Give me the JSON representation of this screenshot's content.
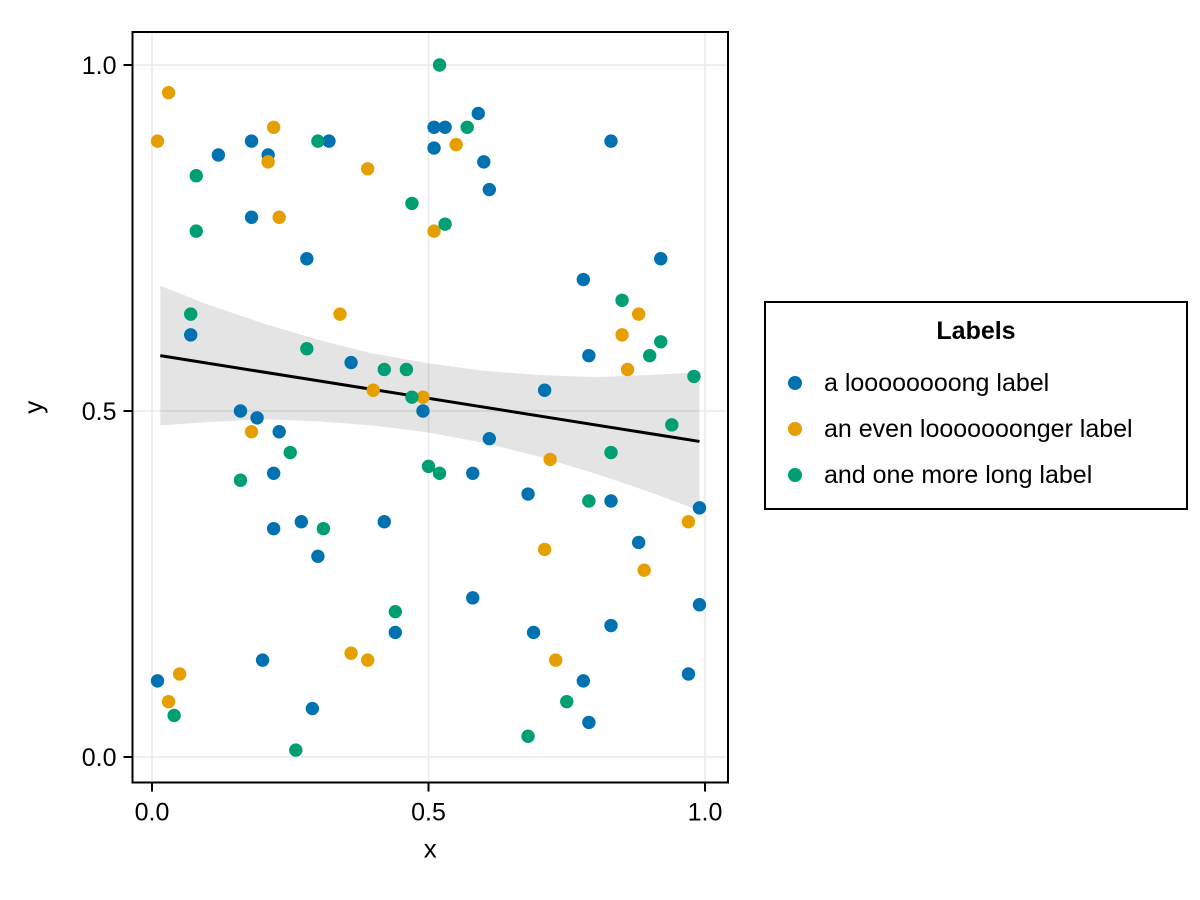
{
  "figure": {
    "background": "#ffffff"
  },
  "colors": {
    "grid": "#e9e9e9",
    "spine": "#000000",
    "tick": "#000000",
    "text": "#000000",
    "band_fill": "#000000",
    "band_opacity": 0.105,
    "fit_line": "#000000"
  },
  "legend": {
    "title": "Labels",
    "position": "right",
    "items": [
      {
        "label": "a loooooooong label",
        "color": "#0072B2"
      },
      {
        "label": "an even looooooonger label",
        "color": "#E69F00"
      },
      {
        "label": "and one more long label",
        "color": "#009E73"
      }
    ]
  },
  "chart_data": {
    "type": "scatter",
    "title": "",
    "xlabel": "x",
    "ylabel": "y",
    "xlim": [
      -0.036,
      1.042
    ],
    "ylim": [
      -0.036,
      1.048
    ],
    "grid": true,
    "legend_position": "right",
    "x_ticks": {
      "values": [
        0,
        0.5,
        1
      ],
      "labels": [
        "0.0",
        "0.5",
        "1.0"
      ]
    },
    "y_ticks": {
      "values": [
        0,
        0.5,
        1
      ],
      "labels": [
        "0.0",
        "0.5",
        "1.0"
      ]
    },
    "series": [
      {
        "name": "a loooooooong label",
        "color": "#0072B2",
        "points": [
          [
            0.18,
            0.89
          ],
          [
            0.12,
            0.87
          ],
          [
            0.21,
            0.87
          ],
          [
            0.32,
            0.89
          ],
          [
            0.18,
            0.78
          ],
          [
            0.28,
            0.72
          ],
          [
            0.51,
            0.91
          ],
          [
            0.53,
            0.91
          ],
          [
            0.51,
            0.88
          ],
          [
            0.59,
            0.93
          ],
          [
            0.6,
            0.86
          ],
          [
            0.61,
            0.82
          ],
          [
            0.83,
            0.89
          ],
          [
            0.92,
            0.72
          ],
          [
            0.78,
            0.69
          ],
          [
            0.79,
            0.58
          ],
          [
            0.07,
            0.61
          ],
          [
            0.36,
            0.57
          ],
          [
            0.49,
            0.5
          ],
          [
            0.16,
            0.5
          ],
          [
            0.19,
            0.49
          ],
          [
            0.23,
            0.47
          ],
          [
            0.22,
            0.41
          ],
          [
            0.27,
            0.34
          ],
          [
            0.22,
            0.33
          ],
          [
            0.42,
            0.34
          ],
          [
            0.3,
            0.29
          ],
          [
            0.71,
            0.53
          ],
          [
            0.61,
            0.46
          ],
          [
            0.58,
            0.41
          ],
          [
            0.68,
            0.38
          ],
          [
            0.83,
            0.37
          ],
          [
            0.99,
            0.36
          ],
          [
            0.88,
            0.31
          ],
          [
            0.44,
            0.18
          ],
          [
            0.2,
            0.14
          ],
          [
            0.01,
            0.11
          ],
          [
            0.29,
            0.07
          ],
          [
            0.58,
            0.23
          ],
          [
            0.99,
            0.22
          ],
          [
            0.69,
            0.18
          ],
          [
            0.83,
            0.19
          ],
          [
            0.78,
            0.11
          ],
          [
            0.97,
            0.12
          ],
          [
            0.79,
            0.05
          ]
        ]
      },
      {
        "name": "an even looooooonger label",
        "color": "#E69F00",
        "points": [
          [
            0.03,
            0.96
          ],
          [
            0.01,
            0.89
          ],
          [
            0.22,
            0.91
          ],
          [
            0.21,
            0.86
          ],
          [
            0.23,
            0.78
          ],
          [
            0.39,
            0.85
          ],
          [
            0.55,
            0.885
          ],
          [
            0.51,
            0.76
          ],
          [
            0.34,
            0.64
          ],
          [
            0.4,
            0.53
          ],
          [
            0.18,
            0.47
          ],
          [
            0.49,
            0.52
          ],
          [
            0.88,
            0.64
          ],
          [
            0.85,
            0.61
          ],
          [
            0.86,
            0.56
          ],
          [
            0.72,
            0.43
          ],
          [
            0.97,
            0.34
          ],
          [
            0.71,
            0.3
          ],
          [
            0.36,
            0.15
          ],
          [
            0.39,
            0.14
          ],
          [
            0.05,
            0.12
          ],
          [
            0.03,
            0.08
          ],
          [
            0.89,
            0.27
          ],
          [
            0.73,
            0.14
          ]
        ]
      },
      {
        "name": "and one more long label",
        "color": "#009E73",
        "points": [
          [
            0.08,
            0.84
          ],
          [
            0.08,
            0.76
          ],
          [
            0.3,
            0.89
          ],
          [
            0.47,
            0.8
          ],
          [
            0.52,
            1.0
          ],
          [
            0.57,
            0.91
          ],
          [
            0.53,
            0.77
          ],
          [
            0.07,
            0.64
          ],
          [
            0.28,
            0.59
          ],
          [
            0.42,
            0.56
          ],
          [
            0.46,
            0.56
          ],
          [
            0.47,
            0.52
          ],
          [
            0.25,
            0.44
          ],
          [
            0.16,
            0.4
          ],
          [
            0.5,
            0.42
          ],
          [
            0.52,
            0.41
          ],
          [
            0.31,
            0.33
          ],
          [
            0.85,
            0.66
          ],
          [
            0.92,
            0.6
          ],
          [
            0.9,
            0.58
          ],
          [
            0.98,
            0.55
          ],
          [
            0.94,
            0.48
          ],
          [
            0.83,
            0.44
          ],
          [
            0.79,
            0.37
          ],
          [
            0.44,
            0.21
          ],
          [
            0.04,
            0.06
          ],
          [
            0.26,
            0.01
          ],
          [
            0.75,
            0.08
          ],
          [
            0.68,
            0.03
          ]
        ]
      }
    ],
    "fit_line": {
      "x": [
        0.015,
        0.99
      ],
      "y": [
        0.58,
        0.456
      ]
    },
    "confidence_band": {
      "x": [
        0.015,
        0.1,
        0.2,
        0.3,
        0.4,
        0.5,
        0.6,
        0.7,
        0.8,
        0.9,
        0.99
      ],
      "upper": [
        0.681,
        0.654,
        0.627,
        0.603,
        0.583,
        0.569,
        0.558,
        0.552,
        0.549,
        0.552,
        0.556
      ],
      "lower": [
        0.479,
        0.484,
        0.488,
        0.485,
        0.479,
        0.469,
        0.454,
        0.434,
        0.41,
        0.383,
        0.356
      ]
    }
  }
}
